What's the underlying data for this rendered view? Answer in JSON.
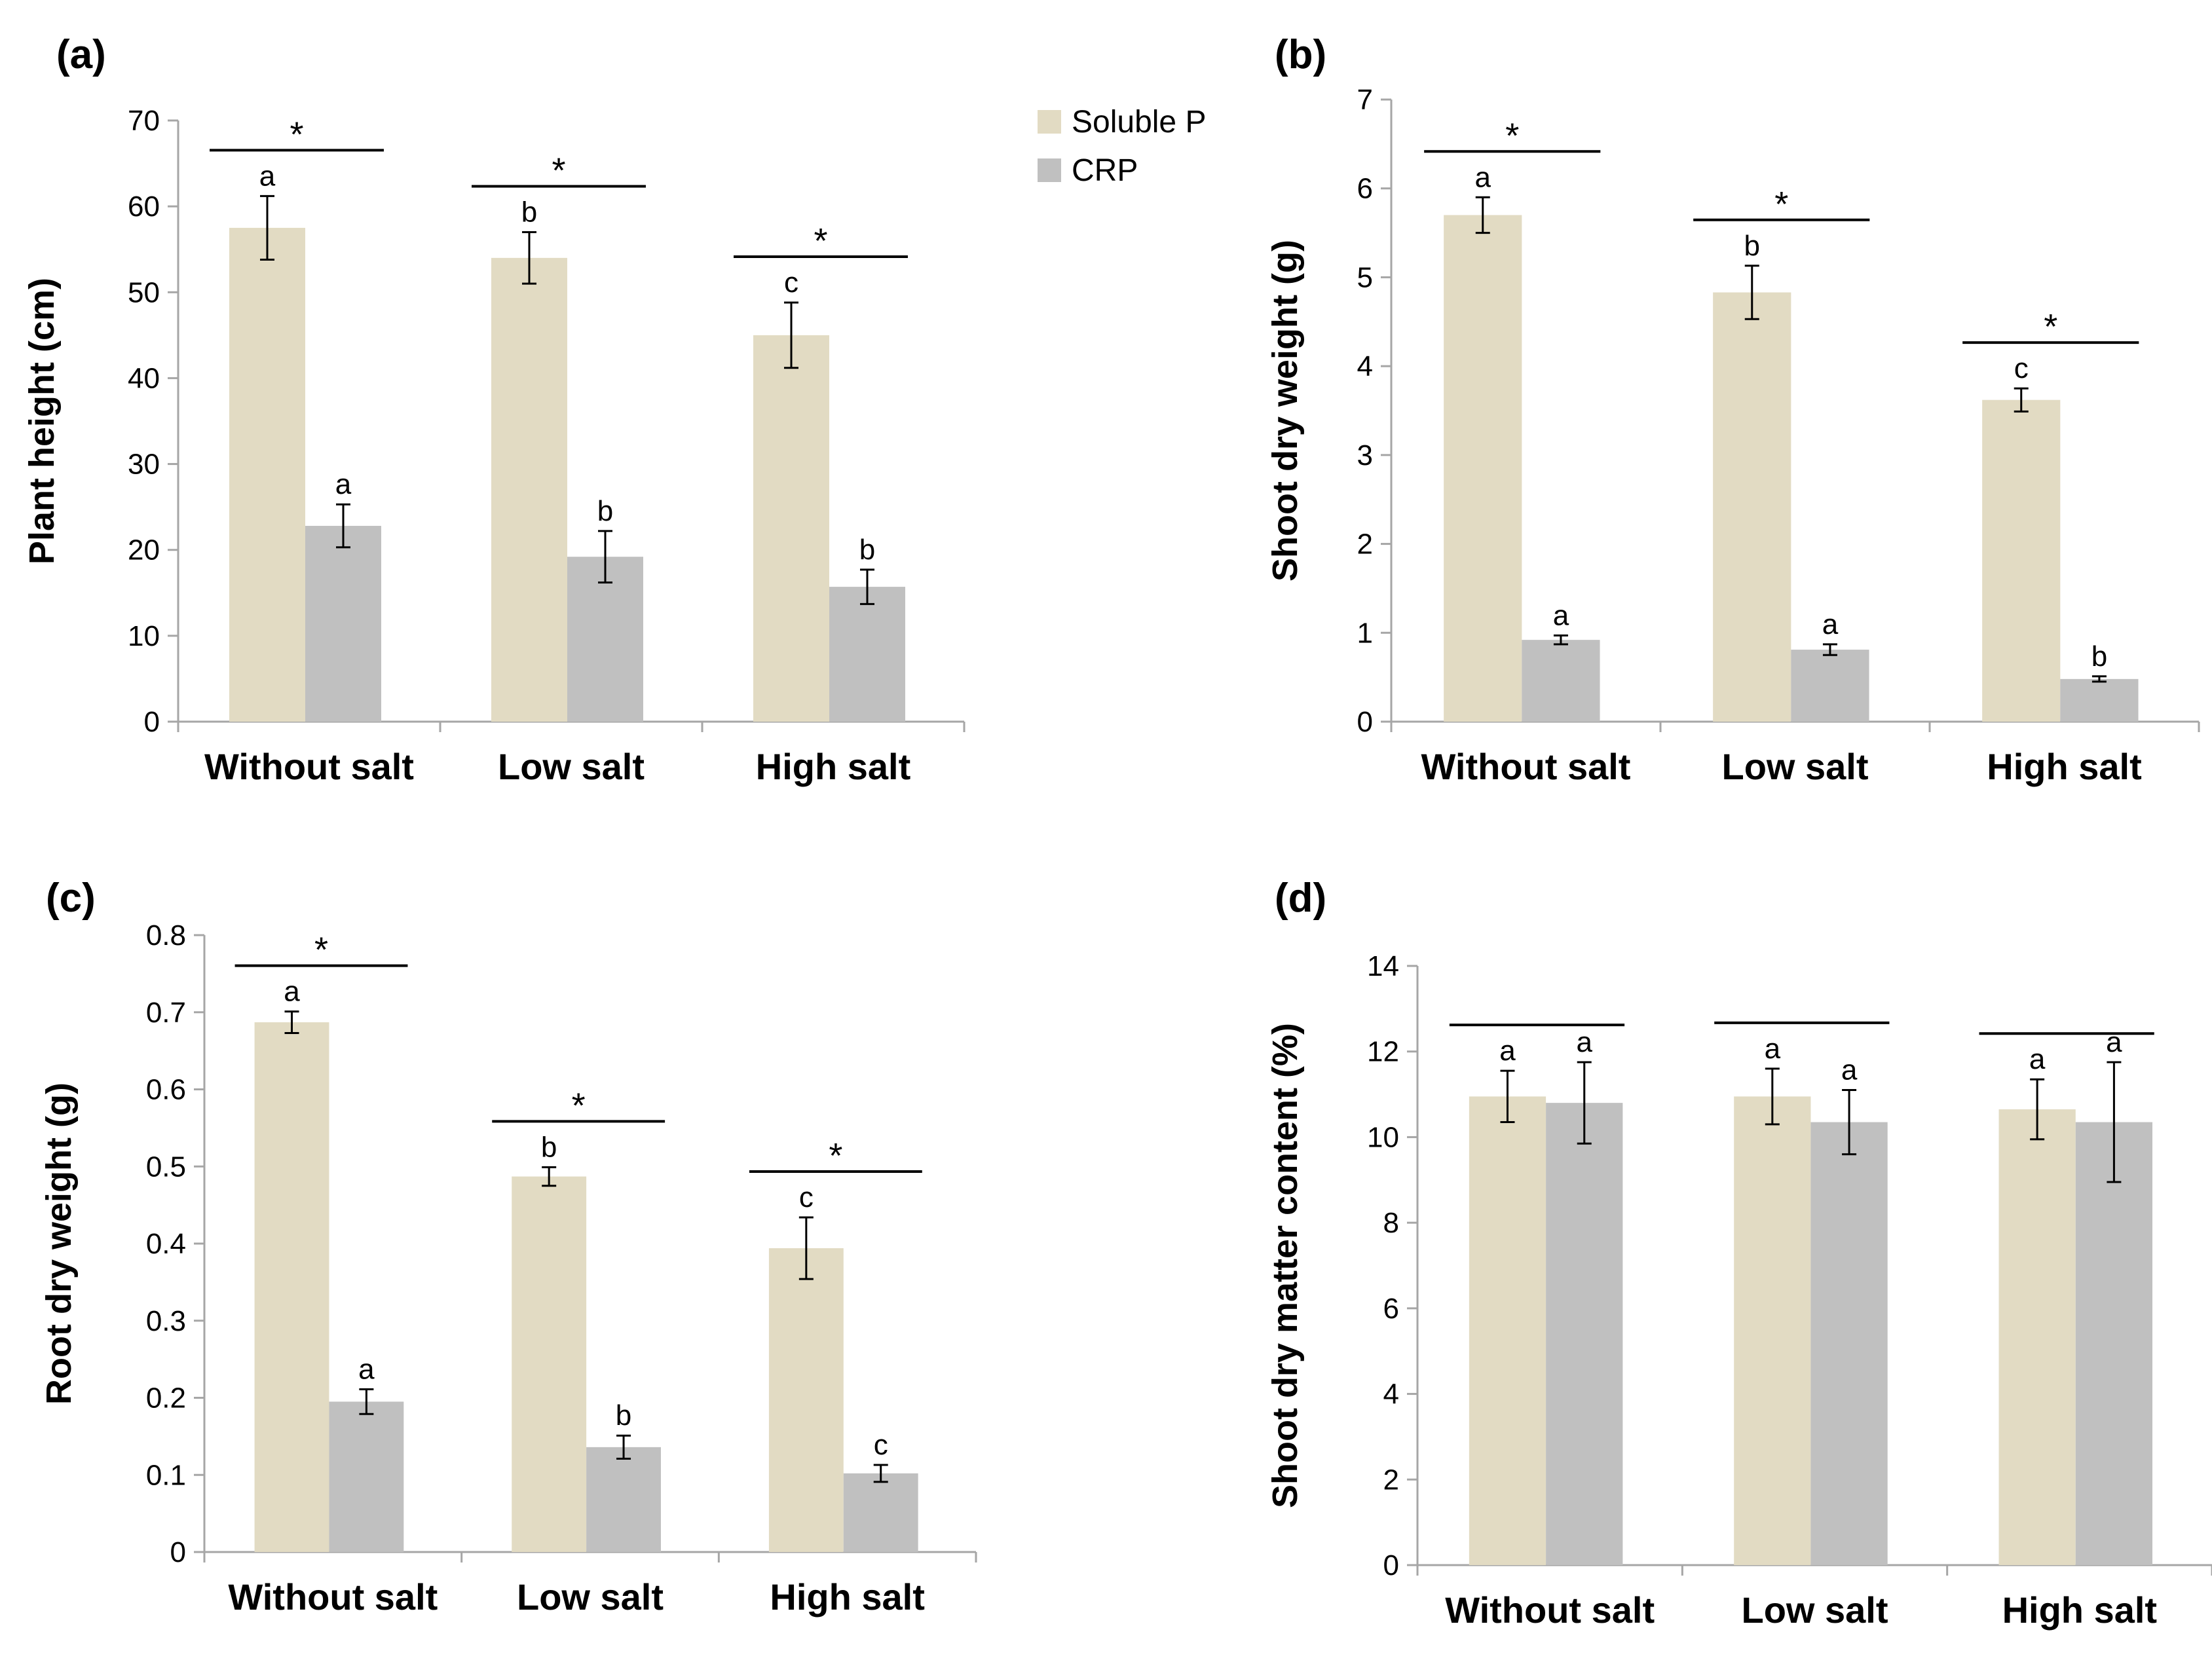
{
  "colors": {
    "soluble_p": "#e2dbc3",
    "crp": "#c0c0c0",
    "axis": "#a6a6a6",
    "ink": "#000000"
  },
  "legend": {
    "items": [
      {
        "name": "Soluble P",
        "color": "#e2dbc3"
      },
      {
        "name": "CRP",
        "color": "#c0c0c0"
      }
    ]
  },
  "chart_data": [
    {
      "panel": "(a)",
      "type": "bar",
      "ylabel": "Plant height (cm)",
      "ylim": [
        0,
        70
      ],
      "yticks": [
        "0",
        "10",
        "20",
        "30",
        "40",
        "50",
        "60",
        "70"
      ],
      "categories": [
        "Without salt",
        "Low salt",
        "High salt"
      ],
      "series": [
        {
          "name": "Soluble P",
          "values": [
            57.5,
            54,
            45
          ],
          "errors": [
            3.7,
            3.0,
            3.8
          ],
          "letters": [
            "a",
            "b",
            "c"
          ]
        },
        {
          "name": "CRP",
          "values": [
            22.8,
            19.2,
            15.7
          ],
          "errors": [
            2.5,
            3.0,
            2.0
          ],
          "letters": [
            "a",
            "b",
            "b"
          ]
        }
      ],
      "significance": [
        "*",
        "*",
        "*"
      ]
    },
    {
      "panel": "(b)",
      "type": "bar",
      "ylabel": "Shoot dry weight (g)",
      "ylim": [
        0,
        7
      ],
      "yticks": [
        "0",
        "1",
        "2",
        "3",
        "4",
        "5",
        "6",
        "7"
      ],
      "categories": [
        "Without salt",
        "Low salt",
        "High salt"
      ],
      "series": [
        {
          "name": "Soluble P",
          "values": [
            5.7,
            4.83,
            3.62
          ],
          "errors": [
            0.2,
            0.3,
            0.13
          ],
          "letters": [
            "a",
            "b",
            "c"
          ]
        },
        {
          "name": "CRP",
          "values": [
            0.92,
            0.81,
            0.48
          ],
          "errors": [
            0.05,
            0.06,
            0.03
          ],
          "letters": [
            "a",
            "a",
            "b"
          ]
        }
      ],
      "significance": [
        "*",
        "*",
        "*"
      ]
    },
    {
      "panel": "(c)",
      "type": "bar",
      "ylabel": "Root dry weight (g)",
      "ylim": [
        0,
        0.8
      ],
      "yticks": [
        "0",
        "0.1",
        "0.2",
        "0.3",
        "0.4",
        "0.5",
        "0.6",
        "0.7",
        "0.8"
      ],
      "categories": [
        "Without salt",
        "Low salt",
        "High salt"
      ],
      "series": [
        {
          "name": "Soluble P",
          "values": [
            0.687,
            0.487,
            0.394
          ],
          "errors": [
            0.014,
            0.012,
            0.04
          ],
          "letters": [
            "a",
            "b",
            "c"
          ]
        },
        {
          "name": "CRP",
          "values": [
            0.195,
            0.136,
            0.102
          ],
          "errors": [
            0.016,
            0.015,
            0.011
          ],
          "letters": [
            "a",
            "b",
            "c"
          ]
        }
      ],
      "significance": [
        "*",
        "*",
        "*"
      ]
    },
    {
      "panel": "(d)",
      "type": "bar",
      "ylabel": "Shoot dry matter content (%)",
      "ylim": [
        0,
        14
      ],
      "yticks": [
        "0",
        "2",
        "4",
        "6",
        "8",
        "10",
        "12",
        "14"
      ],
      "categories": [
        "Without salt",
        "Low salt",
        "High salt"
      ],
      "series": [
        {
          "name": "Soluble P",
          "values": [
            10.95,
            10.95,
            10.65
          ],
          "errors": [
            0.6,
            0.65,
            0.7
          ],
          "letters": [
            "a",
            "a",
            "a"
          ]
        },
        {
          "name": "CRP",
          "values": [
            10.8,
            10.35,
            10.35
          ],
          "errors": [
            0.95,
            0.75,
            1.4
          ],
          "letters": [
            "a",
            "a",
            "a"
          ]
        }
      ],
      "significance": [
        "",
        "",
        ""
      ]
    }
  ]
}
